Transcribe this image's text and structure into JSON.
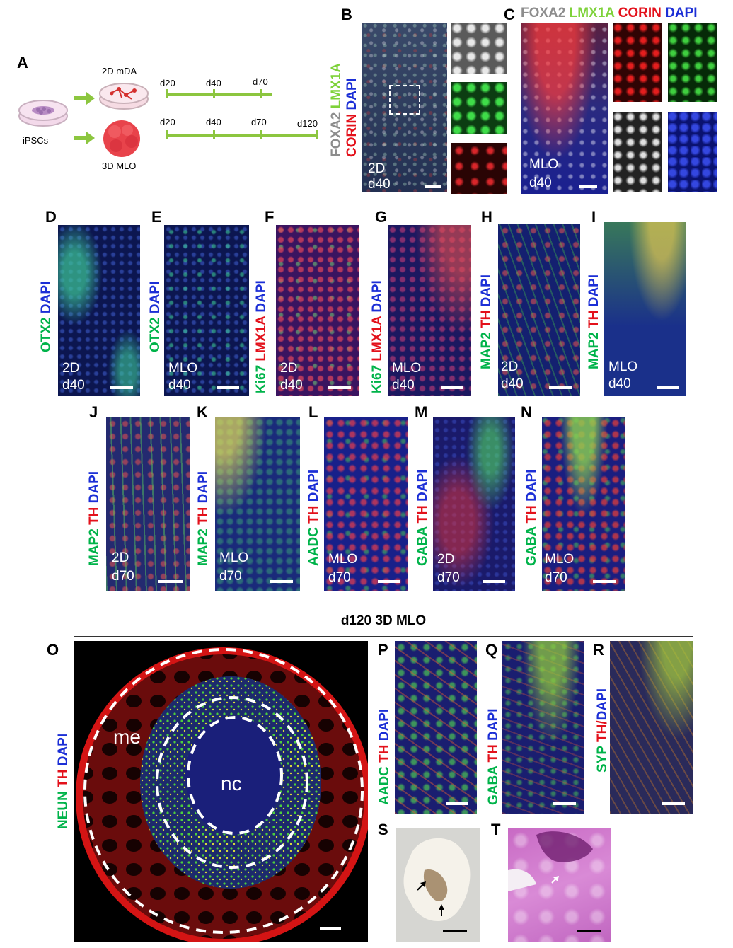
{
  "panels": {
    "A": "A",
    "B": "B",
    "C": "C",
    "D": "D",
    "E": "E",
    "F": "F",
    "G": "G",
    "H": "H",
    "I": "I",
    "J": "J",
    "K": "K",
    "L": "L",
    "M": "M",
    "N": "N",
    "O": "O",
    "P": "P",
    "Q": "Q",
    "R": "R",
    "S": "S",
    "T": "T"
  },
  "schematic": {
    "label_2d": "2D mDA",
    "label_3d": "3D MLO",
    "label_ipsc": "iPSCs",
    "timeline_2d": [
      "d20",
      "d40",
      "d70"
    ],
    "timeline_3d": [
      "d20",
      "d40",
      "d70",
      "d120"
    ]
  },
  "stains": {
    "foxa2": "FOXA2",
    "lmx1a": "LMX1A",
    "corin": "CORIN",
    "dapi": "DAPI",
    "otx2": "OTX2",
    "ki67": "Ki67",
    "map2": "MAP2",
    "th": "TH",
    "aadc": "AADC",
    "gaba": "GABA",
    "neun": "NEUN",
    "syp": "SYP",
    "th_slash": "TH/",
    "foxa2_trail": "FOXA2 ",
    "lmx1a_trail": "LMX1A ",
    "corin_trail": "CORIN "
  },
  "conditions": {
    "c2d": "2D",
    "mlo": "MLO",
    "d40": "d40",
    "d70": "d70"
  },
  "section_title": "d120 3D MLO",
  "regions": {
    "me": "me",
    "nc": "nc"
  },
  "colors": {
    "green": "#00b34a",
    "red": "#e3111b",
    "blue": "#1c2fd6",
    "gray": "#8d8d8d",
    "timeline": "#8cc63f"
  }
}
